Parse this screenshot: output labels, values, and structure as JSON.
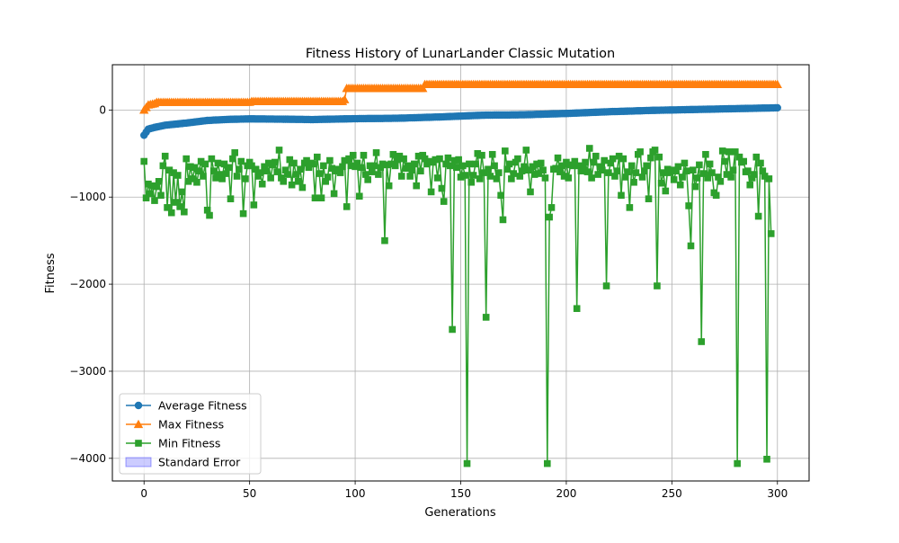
{
  "chart_data": {
    "type": "line",
    "title": "Fitness History of LunarLander Classic Mutation",
    "xlabel": "Generations",
    "ylabel": "Fitness",
    "xlim": [
      -15,
      315
    ],
    "ylim": [
      -4260,
      520
    ],
    "xticks": [
      0,
      50,
      100,
      150,
      200,
      250,
      300
    ],
    "yticks": [
      -4000,
      -3000,
      -2000,
      -1000,
      0
    ],
    "xtick_labels": [
      "0",
      "50",
      "100",
      "150",
      "200",
      "250",
      "300"
    ],
    "ytick_labels": [
      "−4000",
      "−3000",
      "−2000",
      "−1000",
      "0"
    ],
    "grid": true,
    "legend_position": "lower-left",
    "series": [
      {
        "name": "Average Fitness",
        "color": "#1f77b4",
        "marker": "circle",
        "anchors": [
          [
            0,
            -290
          ],
          [
            2,
            -220
          ],
          [
            5,
            -200
          ],
          [
            10,
            -175
          ],
          [
            20,
            -150
          ],
          [
            30,
            -120
          ],
          [
            40,
            -108
          ],
          [
            50,
            -102
          ],
          [
            60,
            -104
          ],
          [
            80,
            -110
          ],
          [
            100,
            -100
          ],
          [
            120,
            -95
          ],
          [
            140,
            -80
          ],
          [
            160,
            -60
          ],
          [
            180,
            -55
          ],
          [
            200,
            -40
          ],
          [
            220,
            -20
          ],
          [
            240,
            -5
          ],
          [
            260,
            5
          ],
          [
            280,
            15
          ],
          [
            300,
            25
          ]
        ]
      },
      {
        "name": "Max Fitness",
        "color": "#ff7f0e",
        "marker": "triangle",
        "anchors": [
          [
            0,
            0
          ],
          [
            2,
            60
          ],
          [
            4,
            70
          ],
          [
            5,
            75
          ],
          [
            6,
            90
          ],
          [
            50,
            90
          ],
          [
            51,
            100
          ],
          [
            94,
            100
          ],
          [
            95,
            120
          ],
          [
            96,
            250
          ],
          [
            132,
            250
          ],
          [
            133,
            295
          ],
          [
            300,
            295
          ]
        ]
      },
      {
        "name": "Min Fitness",
        "color": "#2ca02c",
        "marker": "square",
        "values": [
          -590,
          -1010,
          -850,
          -960,
          -870,
          -1040,
          -880,
          -820,
          -980,
          -640,
          -530,
          -1120,
          -690,
          -1180,
          -720,
          -1060,
          -750,
          -1110,
          -940,
          -1170,
          -560,
          -820,
          -650,
          -790,
          -660,
          -830,
          -700,
          -590,
          -760,
          -620,
          -1150,
          -1210,
          -560,
          -700,
          -780,
          -610,
          -740,
          -790,
          -620,
          -730,
          -660,
          -1020,
          -560,
          -490,
          -760,
          -680,
          -590,
          -1190,
          -790,
          -640,
          -600,
          -640,
          -1090,
          -680,
          -760,
          -720,
          -850,
          -650,
          -700,
          -610,
          -780,
          -630,
          -600,
          -710,
          -460,
          -780,
          -820,
          -690,
          -740,
          -570,
          -860,
          -610,
          -740,
          -820,
          -680,
          -890,
          -610,
          -580,
          -660,
          -610,
          -620,
          -1010,
          -540,
          -730,
          -1010,
          -640,
          -820,
          -770,
          -580,
          -670,
          -960,
          -700,
          -680,
          -720,
          -650,
          -580,
          -1110,
          -560,
          -640,
          -520,
          -650,
          -610,
          -990,
          -660,
          -520,
          -740,
          -800,
          -640,
          -710,
          -640,
          -490,
          -740,
          -660,
          -620,
          -1500,
          -630,
          -870,
          -620,
          -510,
          -640,
          -570,
          -530,
          -760,
          -560,
          -670,
          -640,
          -760,
          -690,
          -620,
          -870,
          -530,
          -700,
          -520,
          -560,
          -620,
          -590,
          -940,
          -600,
          -570,
          -780,
          -560,
          -900,
          -1050,
          -620,
          -550,
          -640,
          -2520,
          -580,
          -660,
          -570,
          -770,
          -640,
          -750,
          -4060,
          -620,
          -830,
          -750,
          -620,
          -500,
          -790,
          -520,
          -720,
          -2380,
          -680,
          -760,
          -510,
          -640,
          -790,
          -720,
          -980,
          -1260,
          -470,
          -680,
          -620,
          -790,
          -730,
          -600,
          -560,
          -760,
          -700,
          -650,
          -460,
          -690,
          -940,
          -650,
          -740,
          -620,
          -730,
          -610,
          -690,
          -780,
          -4060,
          -1230,
          -1120,
          -680,
          -670,
          -550,
          -710,
          -640,
          -760,
          -600,
          -780,
          -630,
          -640,
          -590,
          -2280,
          -640,
          -700,
          -660,
          -600,
          -710,
          -440,
          -780,
          -600,
          -530,
          -740,
          -650,
          -690,
          -580,
          -2020,
          -720,
          -610,
          -560,
          -760,
          -700,
          -530,
          -980,
          -560,
          -770,
          -710,
          -1120,
          -640,
          -830,
          -720,
          -510,
          -480,
          -770,
          -700,
          -640,
          -1020,
          -550,
          -480,
          -460,
          -2020,
          -540,
          -840,
          -720,
          -930,
          -680,
          -720,
          -690,
          -800,
          -700,
          -650,
          -860,
          -770,
          -610,
          -700,
          -1100,
          -1560,
          -690,
          -880,
          -780,
          -630,
          -2660,
          -730,
          -510,
          -780,
          -620,
          -720,
          -950,
          -980,
          -770,
          -820,
          -470,
          -590,
          -740,
          -480,
          -770,
          -690,
          -480,
          -4060,
          -540,
          -600,
          -590,
          -710,
          -700,
          -860,
          -780,
          -740,
          -540,
          -1220,
          -610,
          -700,
          -760,
          -4010,
          -790,
          -1420
        ]
      }
    ],
    "legend": [
      "Average Fitness",
      "Max Fitness",
      "Min Fitness",
      "Standard Error"
    ],
    "band": {
      "name": "Standard Error",
      "color": "#0000ff",
      "opacity": 0.2
    }
  }
}
